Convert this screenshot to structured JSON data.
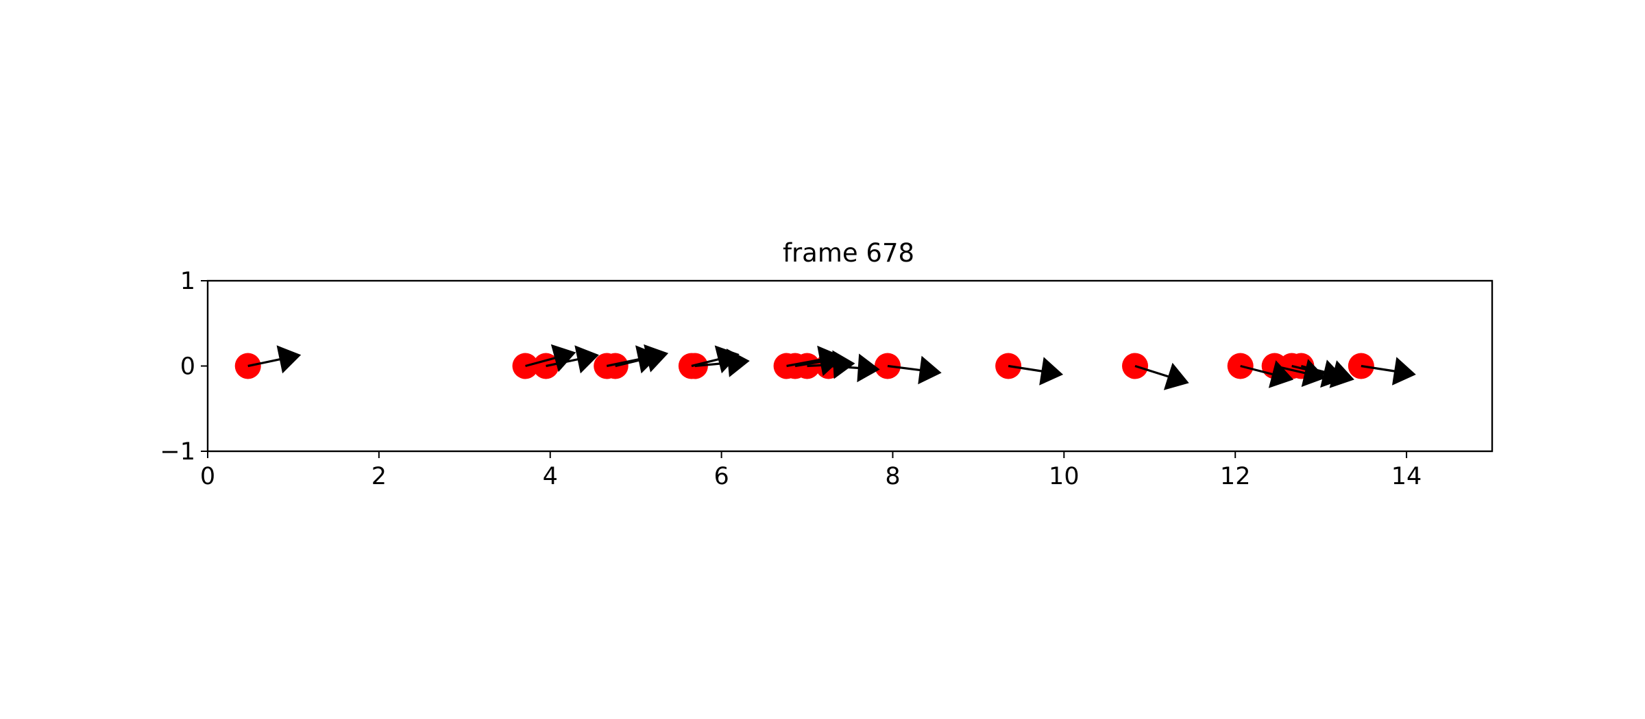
{
  "chart_data": {
    "type": "scatter",
    "title": "frame 678",
    "xlabel": "",
    "ylabel": "",
    "xlim": [
      0,
      15
    ],
    "ylim": [
      -1,
      1
    ],
    "grid": false,
    "legend": "none",
    "x_ticks": [
      0,
      2,
      4,
      6,
      8,
      10,
      12,
      14
    ],
    "x_tick_labels": [
      "0",
      "2",
      "4",
      "6",
      "8",
      "10",
      "12",
      "14"
    ],
    "y_ticks": [
      -1,
      0,
      1
    ],
    "y_tick_labels": [
      "−1",
      "0",
      "1"
    ],
    "marker_color": "#ff0000",
    "arrow_color": "#000000",
    "points": [
      {
        "x": 0.47,
        "y": 0,
        "dx": 0.62,
        "dy": 0.13
      },
      {
        "x": 3.71,
        "y": 0,
        "dx": 0.59,
        "dy": 0.16
      },
      {
        "x": 3.95,
        "y": 0,
        "dx": 0.62,
        "dy": 0.13
      },
      {
        "x": 4.66,
        "y": 0,
        "dx": 0.62,
        "dy": 0.13
      },
      {
        "x": 4.76,
        "y": 0,
        "dx": 0.62,
        "dy": 0.15
      },
      {
        "x": 5.65,
        "y": 0,
        "dx": 0.56,
        "dy": 0.14
      },
      {
        "x": 5.69,
        "y": 0,
        "dx": 0.64,
        "dy": 0.06
      },
      {
        "x": 6.76,
        "y": 0,
        "dx": 0.64,
        "dy": 0.12
      },
      {
        "x": 6.86,
        "y": 0,
        "dx": 0.55,
        "dy": 0.09
      },
      {
        "x": 7.0,
        "y": 0,
        "dx": 0.56,
        "dy": 0.03
      },
      {
        "x": 7.25,
        "y": 0,
        "dx": 0.6,
        "dy": -0.04
      },
      {
        "x": 7.94,
        "y": 0,
        "dx": 0.63,
        "dy": -0.08
      },
      {
        "x": 9.35,
        "y": 0,
        "dx": 0.64,
        "dy": -0.1
      },
      {
        "x": 10.83,
        "y": 0,
        "dx": 0.63,
        "dy": -0.2
      },
      {
        "x": 12.06,
        "y": 0,
        "dx": 0.62,
        "dy": -0.16
      },
      {
        "x": 12.46,
        "y": 0,
        "dx": 0.6,
        "dy": -0.14
      },
      {
        "x": 12.66,
        "y": 0,
        "dx": 0.62,
        "dy": -0.15
      },
      {
        "x": 12.77,
        "y": 0,
        "dx": 0.62,
        "dy": -0.16
      },
      {
        "x": 13.47,
        "y": 0,
        "dx": 0.64,
        "dy": -0.1
      }
    ]
  }
}
